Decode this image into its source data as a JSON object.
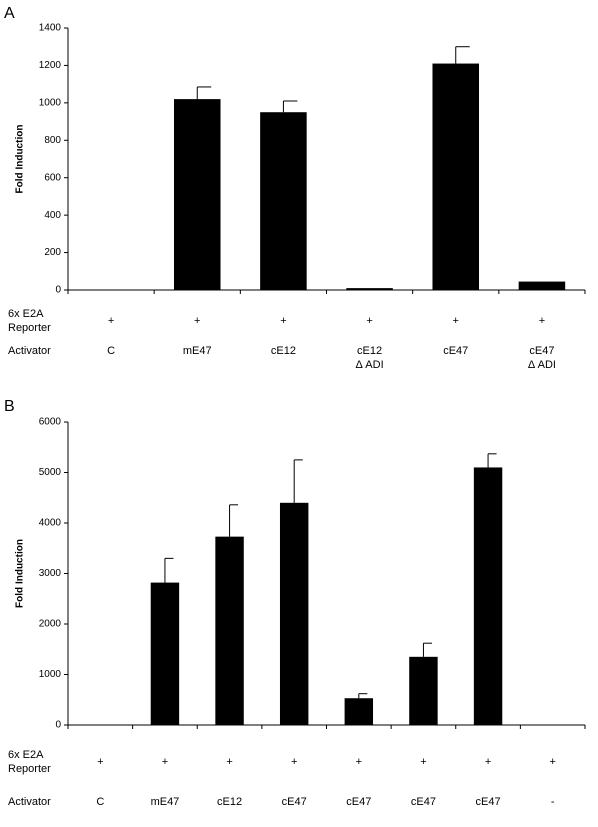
{
  "chart_data": [
    {
      "type": "bar",
      "panel": "A",
      "y_label": "Fold Induction",
      "categories": [
        "C",
        "mE47",
        "cE12",
        "cE12 Δ ADI",
        "cE47",
        "cE47 Δ ADI"
      ],
      "values": [
        0,
        1020,
        950,
        10,
        1210,
        45
      ],
      "errors": [
        null,
        65,
        60,
        null,
        90,
        null
      ],
      "color": "#000000",
      "ylim": [
        0,
        1400
      ],
      "yticks": [
        0,
        200,
        400,
        600,
        800,
        1000,
        1200,
        1400
      ],
      "reporter_label": "6x E2A Reporter",
      "reporter_values": [
        "+",
        "+",
        "+",
        "+",
        "+",
        "+"
      ],
      "activator_label": "Activator"
    },
    {
      "type": "bar",
      "panel": "B",
      "y_label": "Fold Induction",
      "categories": [
        "C",
        "mE47",
        "cE12",
        "cE47",
        "cE47",
        "cE47",
        "cE47",
        "-"
      ],
      "values": [
        0,
        2820,
        3730,
        4400,
        530,
        1350,
        5100,
        0
      ],
      "errors": [
        null,
        480,
        630,
        850,
        90,
        270,
        270,
        null
      ],
      "color": "#000000",
      "ylim": [
        0,
        6000
      ],
      "yticks": [
        0,
        1000,
        2000,
        3000,
        4000,
        5000,
        6000
      ],
      "reporter_label": "6x E2A Reporter",
      "reporter_values": [
        "+",
        "+",
        "+",
        "+",
        "+",
        "+",
        "+",
        "+"
      ],
      "activator_label": "Activator"
    }
  ]
}
